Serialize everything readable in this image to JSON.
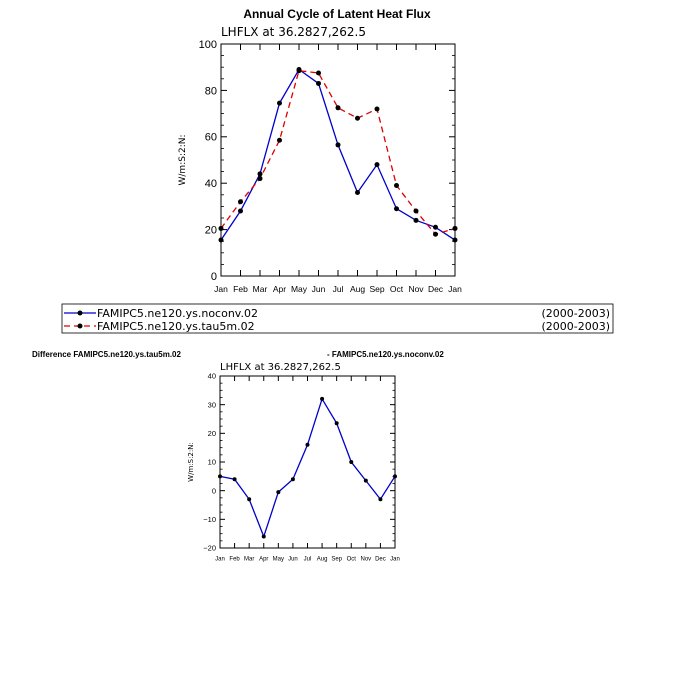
{
  "chart_data": [
    {
      "type": "line",
      "title": "Annual Cycle of Latent Heat Flux",
      "subtitle": "LHFLX  at  36.2827,262.5",
      "ylabel": "W/m:S:2:N:",
      "ylim": [
        0,
        100
      ],
      "yticks": [
        "0",
        "20",
        "40",
        "60",
        "80",
        "100"
      ],
      "categories": [
        "Jan",
        "Feb",
        "Mar",
        "Apr",
        "May",
        "Jun",
        "Jul",
        "Aug",
        "Sep",
        "Oct",
        "Nov",
        "Dec",
        "Jan"
      ],
      "series": [
        {
          "name": "FAMIPC5.ne120.ys.noconv.02",
          "period": "(2000-2003)",
          "color": "#0000cc",
          "dash": "solid",
          "values": [
            15.5,
            28,
            44,
            74.5,
            89,
            83,
            56.5,
            36,
            48,
            29,
            24,
            21,
            15.5
          ]
        },
        {
          "name": "FAMIPC5.ne120.ys.tau5m.02",
          "period": "(2000-2003)",
          "color": "#dd0000",
          "dash": "dashed",
          "values": [
            20.5,
            32,
            42,
            58.5,
            88.5,
            87.5,
            72.5,
            68,
            72,
            39,
            28,
            18,
            20.5
          ]
        }
      ]
    },
    {
      "type": "line",
      "title_left": "Difference FAMIPC5.ne120.ys.tau5m.02",
      "title_right": "- FAMIPC5.ne120.ys.noconv.02",
      "subtitle": "LHFLX  at  36.2827,262.5",
      "ylabel": "W/m:S:2:N:",
      "ylim": [
        -20,
        40
      ],
      "yticks": [
        "−20",
        "−10",
        "0",
        "10",
        "20",
        "30",
        "40"
      ],
      "categories": [
        "Jan",
        "Feb",
        "Mar",
        "Apr",
        "May",
        "Jun",
        "Jul",
        "Aug",
        "Sep",
        "Oct",
        "Nov",
        "Dec",
        "Jan"
      ],
      "series": [
        {
          "name": "difference",
          "color": "#0000cc",
          "dash": "solid",
          "values": [
            5,
            4,
            -3,
            -16,
            -0.5,
            4,
            16,
            32,
            23.5,
            10,
            3.5,
            -3,
            5
          ]
        }
      ]
    }
  ]
}
